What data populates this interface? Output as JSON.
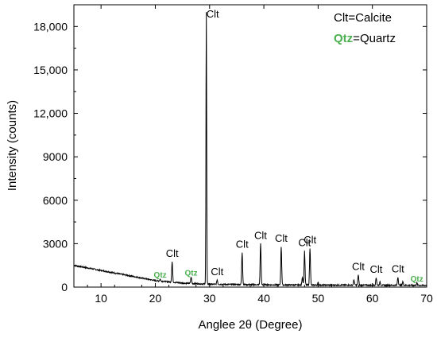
{
  "chart_data": {
    "type": "line",
    "xlabel": "Anglee 2θ (Degree)",
    "ylabel": "Intensity (counts)",
    "xlim": [
      5,
      70
    ],
    "ylim": [
      0,
      19500
    ],
    "x_ticks": [
      10,
      20,
      30,
      40,
      50,
      60,
      70
    ],
    "y_ticks": [
      0,
      3000,
      6000,
      9000,
      12000,
      15000,
      18000
    ],
    "y_tick_labels": [
      "0",
      "3000",
      "6000",
      "9000",
      "12,000",
      "15,000",
      "18,000"
    ],
    "grid": false,
    "line_color": "#000000",
    "qtz_color": "#4CAF50",
    "legend": {
      "placement": "top-right",
      "items": [
        {
          "abbr": "Clt",
          "sep": "=",
          "name": "Calcite",
          "color": "#000000"
        },
        {
          "abbr": "Qtz",
          "sep": "=",
          "name": "Quartz",
          "color": "#4CAF50"
        }
      ]
    },
    "baseline": [
      [
        5,
        1500
      ],
      [
        10,
        1150
      ],
      [
        15,
        800
      ],
      [
        20,
        450
      ],
      [
        25,
        280
      ],
      [
        30,
        200
      ],
      [
        35,
        180
      ],
      [
        40,
        160
      ],
      [
        45,
        150
      ],
      [
        50,
        140
      ],
      [
        55,
        140
      ],
      [
        60,
        130
      ],
      [
        65,
        130
      ],
      [
        70,
        120
      ]
    ],
    "peaks": [
      {
        "x": 20.9,
        "y": 550,
        "label": "Qtz",
        "mineral": "quartz"
      },
      {
        "x": 23.1,
        "y": 1750,
        "label": "Clt",
        "mineral": "calcite"
      },
      {
        "x": 26.6,
        "y": 700,
        "label": "Qtz",
        "mineral": "quartz"
      },
      {
        "x": 29.4,
        "y": 19000,
        "label": "Clt",
        "mineral": "calcite"
      },
      {
        "x": 31.4,
        "y": 500,
        "label": "Clt",
        "mineral": "calcite"
      },
      {
        "x": 36.0,
        "y": 2400,
        "label": "Clt",
        "mineral": "calcite"
      },
      {
        "x": 39.4,
        "y": 3000,
        "label": "Clt",
        "mineral": "calcite"
      },
      {
        "x": 43.2,
        "y": 2800,
        "label": "Clt",
        "mineral": "calcite"
      },
      {
        "x": 47.5,
        "y": 2500,
        "label": "Clt",
        "mineral": "calcite"
      },
      {
        "x": 48.5,
        "y": 2700,
        "label": "Clt",
        "mineral": "calcite"
      },
      {
        "x": 57.4,
        "y": 850,
        "label": "Clt",
        "mineral": "calcite"
      },
      {
        "x": 60.7,
        "y": 650,
        "label": "Clt",
        "mineral": "calcite"
      },
      {
        "x": 64.7,
        "y": 700,
        "label": "Clt",
        "mineral": "calcite"
      },
      {
        "x": 68.2,
        "y": 280,
        "label": "Qtz",
        "mineral": "quartz"
      }
    ],
    "minor_peaks": [
      {
        "x": 56.6,
        "y": 500
      },
      {
        "x": 61.4,
        "y": 350
      },
      {
        "x": 65.6,
        "y": 380
      },
      {
        "x": 47.1,
        "y": 700
      },
      {
        "x": 50.0,
        "y": 300
      }
    ]
  }
}
